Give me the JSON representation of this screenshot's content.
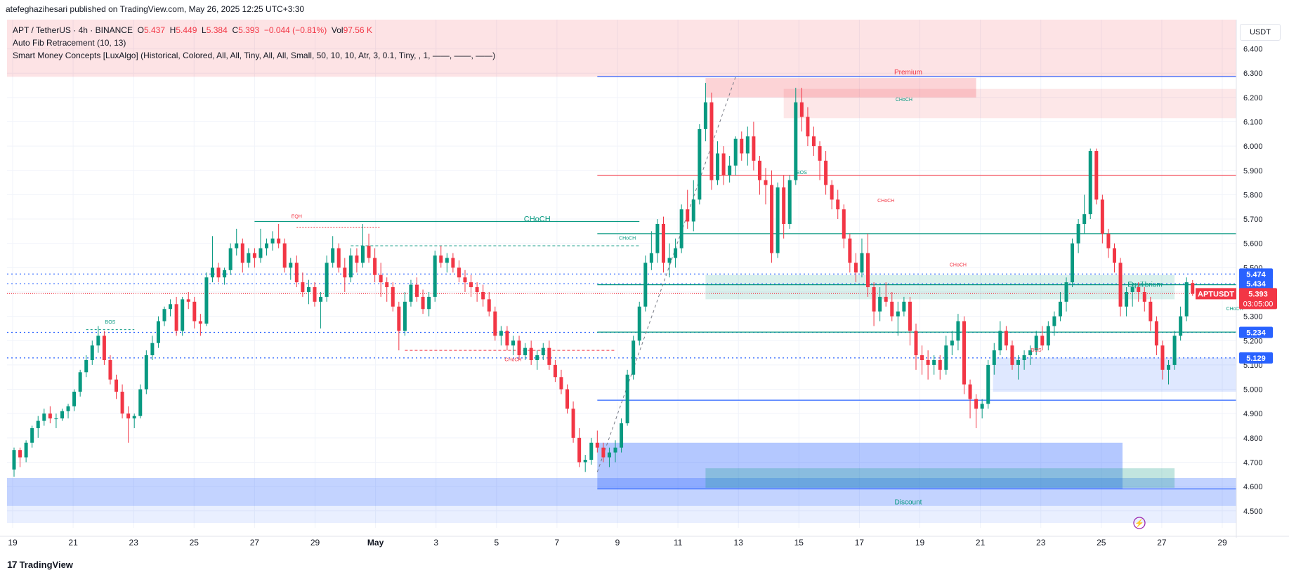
{
  "publisher": "atefeghazihesari published on TradingView.com, May 26, 2025 12:25 UTC+3:30",
  "legend": {
    "symbol": "APT / TetherUS · 4h · BINANCE",
    "o_label": "O",
    "o": "5.437",
    "h_label": "H",
    "h": "5.449",
    "l_label": "L",
    "l": "5.384",
    "c_label": "C",
    "c": "5.393",
    "change": "−0.044 (−0.81%)",
    "vol_label": "Vol",
    "vol": "97.56 K",
    "indicator1": "Auto Fib Retracement (10, 13)",
    "indicator2": "Smart Money Concepts [LuxAlgo] (Historical, Colored, All, All, Tiny, All, All, Small, 50, 10, 10, Atr, 3, 0.1, Tiny, , 1, ——, ——, ——)"
  },
  "currency": "USDT",
  "footer": {
    "brand": "TradingView",
    "logo": "17"
  },
  "colors": {
    "up": "#089981",
    "down": "#f23645",
    "fib": "#2962ff",
    "premium": "#f23645",
    "discount": "#2962ff"
  },
  "chart_data": {
    "type": "candlestick",
    "symbol": "APTUSDT",
    "timeframe": "4h",
    "y_ticks": [
      "6.400",
      "6.300",
      "6.200",
      "6.100",
      "6.000",
      "5.900",
      "5.800",
      "5.700",
      "5.600",
      "5.500",
      "5.400",
      "5.300",
      "5.200",
      "5.100",
      "5.000",
      "4.900",
      "4.800",
      "4.700",
      "4.600",
      "4.500"
    ],
    "ylim": [
      4.43,
      6.52
    ],
    "x_ticks": [
      "19",
      "21",
      "23",
      "25",
      "27",
      "29",
      "May",
      "3",
      "5",
      "7",
      "9",
      "11",
      "13",
      "15",
      "17",
      "19",
      "21",
      "23",
      "25",
      "27",
      "29"
    ],
    "last_price_label": "APTUSDT",
    "last_price": "5.393",
    "countdown": "03:05:00",
    "price_tags": [
      {
        "value": 5.474,
        "text": "5.474",
        "color": "#2962ff"
      },
      {
        "value": 5.434,
        "text": "5.434",
        "color": "#2962ff"
      },
      {
        "value": 5.234,
        "text": "5.234",
        "color": "#2962ff"
      },
      {
        "value": 5.129,
        "text": "5.129",
        "color": "#2962ff"
      }
    ],
    "zone_labels": {
      "premium": "Premium",
      "discount": "Discount",
      "equilibrium": "Equilibrium"
    },
    "annotations": [
      {
        "text": "CHoCH",
        "x": 87,
        "y": 5.69,
        "color": "#089981",
        "size": "big"
      },
      {
        "text": "BOS",
        "x": 16,
        "y": 5.27,
        "color": "#089981"
      },
      {
        "text": "EQH",
        "x": 47,
        "y": 5.705,
        "color": "#f23645"
      },
      {
        "text": "CHoCH",
        "x": 102,
        "y": 5.615,
        "color": "#089981"
      },
      {
        "text": "CHoCH",
        "x": 83,
        "y": 5.115,
        "color": "#f23645"
      },
      {
        "text": "BOS",
        "x": 131,
        "y": 5.885,
        "color": "#089981"
      },
      {
        "text": "CHoCH",
        "x": 148,
        "y": 6.185,
        "color": "#089981"
      },
      {
        "text": "CHoCH",
        "x": 145,
        "y": 5.77,
        "color": "#f23645"
      },
      {
        "text": "CHoCH",
        "x": 157,
        "y": 5.505,
        "color": "#f23645"
      },
      {
        "text": "BOS",
        "x": 170,
        "y": 5.155,
        "color": "#f23645"
      },
      {
        "text": "CHoCH",
        "x": 203,
        "y": 5.325,
        "color": "#089981"
      }
    ],
    "candles_ohlc": [
      [
        4.67,
        4.76,
        4.64,
        4.75
      ],
      [
        4.75,
        4.76,
        4.68,
        4.72
      ],
      [
        4.72,
        4.79,
        4.7,
        4.78
      ],
      [
        4.78,
        4.85,
        4.76,
        4.84
      ],
      [
        4.84,
        4.89,
        4.8,
        4.87
      ],
      [
        4.87,
        4.92,
        4.85,
        4.9
      ],
      [
        4.9,
        4.93,
        4.86,
        4.88
      ],
      [
        4.88,
        4.9,
        4.84,
        4.88
      ],
      [
        4.88,
        4.92,
        4.87,
        4.91
      ],
      [
        4.91,
        4.94,
        4.88,
        4.93
      ],
      [
        4.93,
        5.0,
        4.91,
        4.99
      ],
      [
        4.99,
        5.08,
        4.97,
        5.07
      ],
      [
        5.07,
        5.14,
        5.05,
        5.12
      ],
      [
        5.12,
        5.2,
        5.1,
        5.18
      ],
      [
        5.18,
        5.26,
        5.15,
        5.22
      ],
      [
        5.22,
        5.24,
        5.1,
        5.12
      ],
      [
        5.12,
        5.14,
        5.02,
        5.04
      ],
      [
        5.04,
        5.06,
        4.96,
        4.99
      ],
      [
        4.99,
        5.02,
        4.88,
        4.9
      ],
      [
        4.9,
        4.93,
        4.78,
        4.88
      ],
      [
        4.88,
        4.9,
        4.84,
        4.89
      ],
      [
        4.89,
        5.02,
        4.88,
        5.0
      ],
      [
        5.0,
        5.16,
        4.98,
        5.14
      ],
      [
        5.14,
        5.22,
        5.12,
        5.19
      ],
      [
        5.19,
        5.3,
        5.17,
        5.28
      ],
      [
        5.28,
        5.34,
        5.26,
        5.33
      ],
      [
        5.33,
        5.37,
        5.3,
        5.35
      ],
      [
        5.35,
        5.38,
        5.22,
        5.24
      ],
      [
        5.24,
        5.38,
        5.22,
        5.37
      ],
      [
        5.37,
        5.4,
        5.33,
        5.36
      ],
      [
        5.36,
        5.38,
        5.25,
        5.28
      ],
      [
        5.28,
        5.31,
        5.22,
        5.27
      ],
      [
        5.27,
        5.48,
        5.26,
        5.46
      ],
      [
        5.46,
        5.63,
        5.44,
        5.5
      ],
      [
        5.5,
        5.52,
        5.44,
        5.46
      ],
      [
        5.46,
        5.5,
        5.43,
        5.49
      ],
      [
        5.49,
        5.6,
        5.47,
        5.58
      ],
      [
        5.58,
        5.66,
        5.55,
        5.6
      ],
      [
        5.6,
        5.62,
        5.48,
        5.52
      ],
      [
        5.52,
        5.58,
        5.5,
        5.56
      ],
      [
        5.56,
        5.58,
        5.5,
        5.54
      ],
      [
        5.54,
        5.66,
        5.52,
        5.58
      ],
      [
        5.58,
        5.62,
        5.55,
        5.6
      ],
      [
        5.6,
        5.65,
        5.57,
        5.62
      ],
      [
        5.62,
        5.68,
        5.58,
        5.6
      ],
      [
        5.6,
        5.62,
        5.48,
        5.5
      ],
      [
        5.5,
        5.54,
        5.45,
        5.52
      ],
      [
        5.52,
        5.55,
        5.42,
        5.44
      ],
      [
        5.44,
        5.48,
        5.38,
        5.4
      ],
      [
        5.4,
        5.45,
        5.35,
        5.42
      ],
      [
        5.42,
        5.44,
        5.34,
        5.36
      ],
      [
        5.36,
        5.4,
        5.25,
        5.38
      ],
      [
        5.38,
        5.55,
        5.36,
        5.52
      ],
      [
        5.52,
        5.63,
        5.5,
        5.58
      ],
      [
        5.58,
        5.6,
        5.48,
        5.5
      ],
      [
        5.5,
        5.54,
        5.4,
        5.46
      ],
      [
        5.46,
        5.58,
        5.44,
        5.55
      ],
      [
        5.55,
        5.58,
        5.48,
        5.52
      ],
      [
        5.52,
        5.68,
        5.5,
        5.59
      ],
      [
        5.59,
        5.64,
        5.52,
        5.54
      ],
      [
        5.54,
        5.58,
        5.44,
        5.47
      ],
      [
        5.47,
        5.52,
        5.38,
        5.44
      ],
      [
        5.44,
        5.46,
        5.36,
        5.42
      ],
      [
        5.42,
        5.44,
        5.32,
        5.34
      ],
      [
        5.34,
        5.36,
        5.16,
        5.24
      ],
      [
        5.24,
        5.4,
        5.22,
        5.36
      ],
      [
        5.36,
        5.45,
        5.34,
        5.43
      ],
      [
        5.43,
        5.46,
        5.36,
        5.38
      ],
      [
        5.38,
        5.41,
        5.31,
        5.33
      ],
      [
        5.33,
        5.4,
        5.3,
        5.38
      ],
      [
        5.38,
        5.57,
        5.36,
        5.55
      ],
      [
        5.55,
        5.59,
        5.5,
        5.52
      ],
      [
        5.52,
        5.56,
        5.48,
        5.54
      ],
      [
        5.54,
        5.56,
        5.48,
        5.5
      ],
      [
        5.5,
        5.53,
        5.44,
        5.46
      ],
      [
        5.46,
        5.49,
        5.4,
        5.44
      ],
      [
        5.44,
        5.47,
        5.38,
        5.42
      ],
      [
        5.42,
        5.44,
        5.36,
        5.4
      ],
      [
        5.4,
        5.43,
        5.34,
        5.37
      ],
      [
        5.37,
        5.4,
        5.3,
        5.32
      ],
      [
        5.32,
        5.34,
        5.2,
        5.22
      ],
      [
        5.22,
        5.26,
        5.18,
        5.24
      ],
      [
        5.24,
        5.26,
        5.16,
        5.18
      ],
      [
        5.18,
        5.22,
        5.14,
        5.2
      ],
      [
        5.2,
        5.22,
        5.12,
        5.14
      ],
      [
        5.14,
        5.19,
        5.12,
        5.17
      ],
      [
        5.17,
        5.2,
        5.1,
        5.12
      ],
      [
        5.12,
        5.16,
        5.08,
        5.14
      ],
      [
        5.14,
        5.19,
        5.12,
        5.17
      ],
      [
        5.17,
        5.2,
        5.08,
        5.1
      ],
      [
        5.1,
        5.12,
        5.03,
        5.05
      ],
      [
        5.05,
        5.08,
        4.98,
        5.0
      ],
      [
        5.0,
        5.02,
        4.9,
        4.92
      ],
      [
        4.92,
        4.95,
        4.78,
        4.8
      ],
      [
        4.8,
        4.84,
        4.68,
        4.7
      ],
      [
        4.7,
        4.73,
        4.66,
        4.71
      ],
      [
        4.71,
        4.8,
        4.69,
        4.78
      ],
      [
        4.78,
        4.83,
        4.74,
        4.76
      ],
      [
        4.76,
        4.78,
        4.7,
        4.72
      ],
      [
        4.72,
        4.76,
        4.68,
        4.74
      ],
      [
        4.74,
        4.79,
        4.7,
        4.76
      ],
      [
        4.76,
        4.88,
        4.74,
        4.86
      ],
      [
        4.86,
        5.08,
        4.85,
        5.06
      ],
      [
        5.06,
        5.22,
        5.04,
        5.2
      ],
      [
        5.2,
        5.36,
        5.18,
        5.34
      ],
      [
        5.34,
        5.55,
        5.32,
        5.52
      ],
      [
        5.52,
        5.65,
        5.49,
        5.56
      ],
      [
        5.56,
        5.7,
        5.52,
        5.68
      ],
      [
        5.68,
        5.71,
        5.48,
        5.52
      ],
      [
        5.52,
        5.6,
        5.46,
        5.54
      ],
      [
        5.54,
        5.62,
        5.5,
        5.58
      ],
      [
        5.58,
        5.76,
        5.56,
        5.74
      ],
      [
        5.74,
        5.82,
        5.66,
        5.69
      ],
      [
        5.69,
        5.86,
        5.65,
        5.78
      ],
      [
        5.78,
        6.09,
        5.76,
        6.07
      ],
      [
        6.07,
        6.26,
        6.02,
        6.18
      ],
      [
        6.18,
        6.22,
        5.82,
        5.86
      ],
      [
        5.86,
        6.02,
        5.84,
        5.97
      ],
      [
        5.97,
        6.0,
        5.84,
        5.88
      ],
      [
        5.88,
        5.96,
        5.85,
        5.92
      ],
      [
        5.92,
        6.04,
        5.88,
        6.03
      ],
      [
        6.03,
        6.06,
        5.94,
        5.97
      ],
      [
        5.97,
        6.08,
        5.92,
        6.04
      ],
      [
        6.04,
        6.1,
        5.9,
        5.94
      ],
      [
        5.94,
        5.96,
        5.8,
        5.86
      ],
      [
        5.86,
        5.91,
        5.76,
        5.84
      ],
      [
        5.84,
        5.9,
        5.52,
        5.56
      ],
      [
        5.56,
        5.85,
        5.54,
        5.83
      ],
      [
        5.83,
        5.88,
        5.62,
        5.68
      ],
      [
        5.68,
        5.88,
        5.66,
        5.86
      ],
      [
        5.86,
        6.24,
        5.84,
        6.18
      ],
      [
        6.18,
        6.24,
        6.06,
        6.12
      ],
      [
        6.12,
        6.16,
        6.0,
        6.04
      ],
      [
        6.04,
        6.08,
        5.96,
        6.0
      ],
      [
        6.0,
        6.02,
        5.86,
        5.94
      ],
      [
        5.94,
        5.98,
        5.8,
        5.84
      ],
      [
        5.84,
        5.86,
        5.74,
        5.78
      ],
      [
        5.78,
        5.82,
        5.7,
        5.74
      ],
      [
        5.74,
        5.76,
        5.58,
        5.62
      ],
      [
        5.62,
        5.64,
        5.48,
        5.52
      ],
      [
        5.52,
        5.56,
        5.44,
        5.48
      ],
      [
        5.48,
        5.62,
        5.46,
        5.56
      ],
      [
        5.56,
        5.64,
        5.38,
        5.42
      ],
      [
        5.42,
        5.44,
        5.26,
        5.32
      ],
      [
        5.32,
        5.42,
        5.28,
        5.38
      ],
      [
        5.38,
        5.44,
        5.34,
        5.36
      ],
      [
        5.36,
        5.4,
        5.28,
        5.3
      ],
      [
        5.3,
        5.36,
        5.22,
        5.32
      ],
      [
        5.32,
        5.38,
        5.3,
        5.36
      ],
      [
        5.36,
        5.38,
        5.18,
        5.24
      ],
      [
        5.24,
        5.27,
        5.08,
        5.14
      ],
      [
        5.14,
        5.18,
        5.06,
        5.12
      ],
      [
        5.12,
        5.16,
        5.04,
        5.1
      ],
      [
        5.1,
        5.14,
        5.06,
        5.12
      ],
      [
        5.12,
        5.14,
        5.04,
        5.08
      ],
      [
        5.08,
        5.22,
        5.06,
        5.18
      ],
      [
        5.18,
        5.24,
        5.14,
        5.2
      ],
      [
        5.2,
        5.31,
        5.16,
        5.28
      ],
      [
        5.28,
        5.3,
        4.98,
        5.02
      ],
      [
        5.02,
        5.04,
        4.88,
        4.96
      ],
      [
        4.96,
        4.98,
        4.84,
        4.92
      ],
      [
        4.92,
        4.96,
        4.88,
        4.94
      ],
      [
        4.94,
        5.12,
        4.92,
        5.1
      ],
      [
        5.1,
        5.19,
        5.06,
        5.16
      ],
      [
        5.16,
        5.28,
        5.14,
        5.24
      ],
      [
        5.24,
        5.26,
        5.16,
        5.18
      ],
      [
        5.18,
        5.2,
        5.08,
        5.1
      ],
      [
        5.1,
        5.14,
        5.04,
        5.12
      ],
      [
        5.12,
        5.16,
        5.08,
        5.14
      ],
      [
        5.14,
        5.18,
        5.1,
        5.16
      ],
      [
        5.16,
        5.24,
        5.14,
        5.22
      ],
      [
        5.22,
        5.26,
        5.16,
        5.18
      ],
      [
        5.18,
        5.28,
        5.16,
        5.26
      ],
      [
        5.26,
        5.32,
        5.22,
        5.3
      ],
      [
        5.3,
        5.4,
        5.28,
        5.36
      ],
      [
        5.36,
        5.46,
        5.32,
        5.44
      ],
      [
        5.44,
        5.62,
        5.42,
        5.6
      ],
      [
        5.6,
        5.7,
        5.56,
        5.68
      ],
      [
        5.68,
        5.8,
        5.64,
        5.72
      ],
      [
        5.72,
        5.99,
        5.7,
        5.98
      ],
      [
        5.98,
        5.99,
        5.76,
        5.78
      ],
      [
        5.78,
        5.8,
        5.6,
        5.64
      ],
      [
        5.64,
        5.66,
        5.54,
        5.58
      ],
      [
        5.58,
        5.6,
        5.48,
        5.52
      ],
      [
        5.52,
        5.54,
        5.3,
        5.34
      ],
      [
        5.34,
        5.42,
        5.3,
        5.4
      ],
      [
        5.4,
        5.44,
        5.34,
        5.42
      ],
      [
        5.42,
        5.44,
        5.36,
        5.4
      ],
      [
        5.4,
        5.42,
        5.32,
        5.36
      ],
      [
        5.36,
        5.38,
        5.24,
        5.28
      ],
      [
        5.28,
        5.3,
        5.14,
        5.18
      ],
      [
        5.18,
        5.2,
        5.04,
        5.08
      ],
      [
        5.08,
        5.12,
        5.02,
        5.1
      ],
      [
        5.1,
        5.24,
        5.08,
        5.22
      ],
      [
        5.22,
        5.34,
        5.2,
        5.3
      ],
      [
        5.3,
        5.46,
        5.28,
        5.44
      ],
      [
        5.437,
        5.449,
        5.384,
        5.393
      ]
    ]
  }
}
